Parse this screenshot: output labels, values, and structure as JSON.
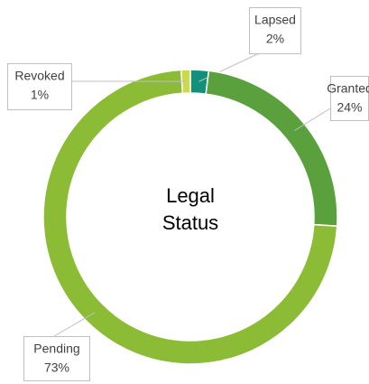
{
  "chart_data": {
    "type": "donut",
    "title": "Legal Status",
    "categories": [
      "Lapsed",
      "Granted",
      "Pending",
      "Revoked"
    ],
    "values": [
      2,
      24,
      73,
      1
    ],
    "value_labels": [
      "2%",
      "24%",
      "73%",
      "1%"
    ],
    "colors": [
      "#12907a",
      "#5aa03c",
      "#8cbb35",
      "#cdd94a"
    ]
  }
}
